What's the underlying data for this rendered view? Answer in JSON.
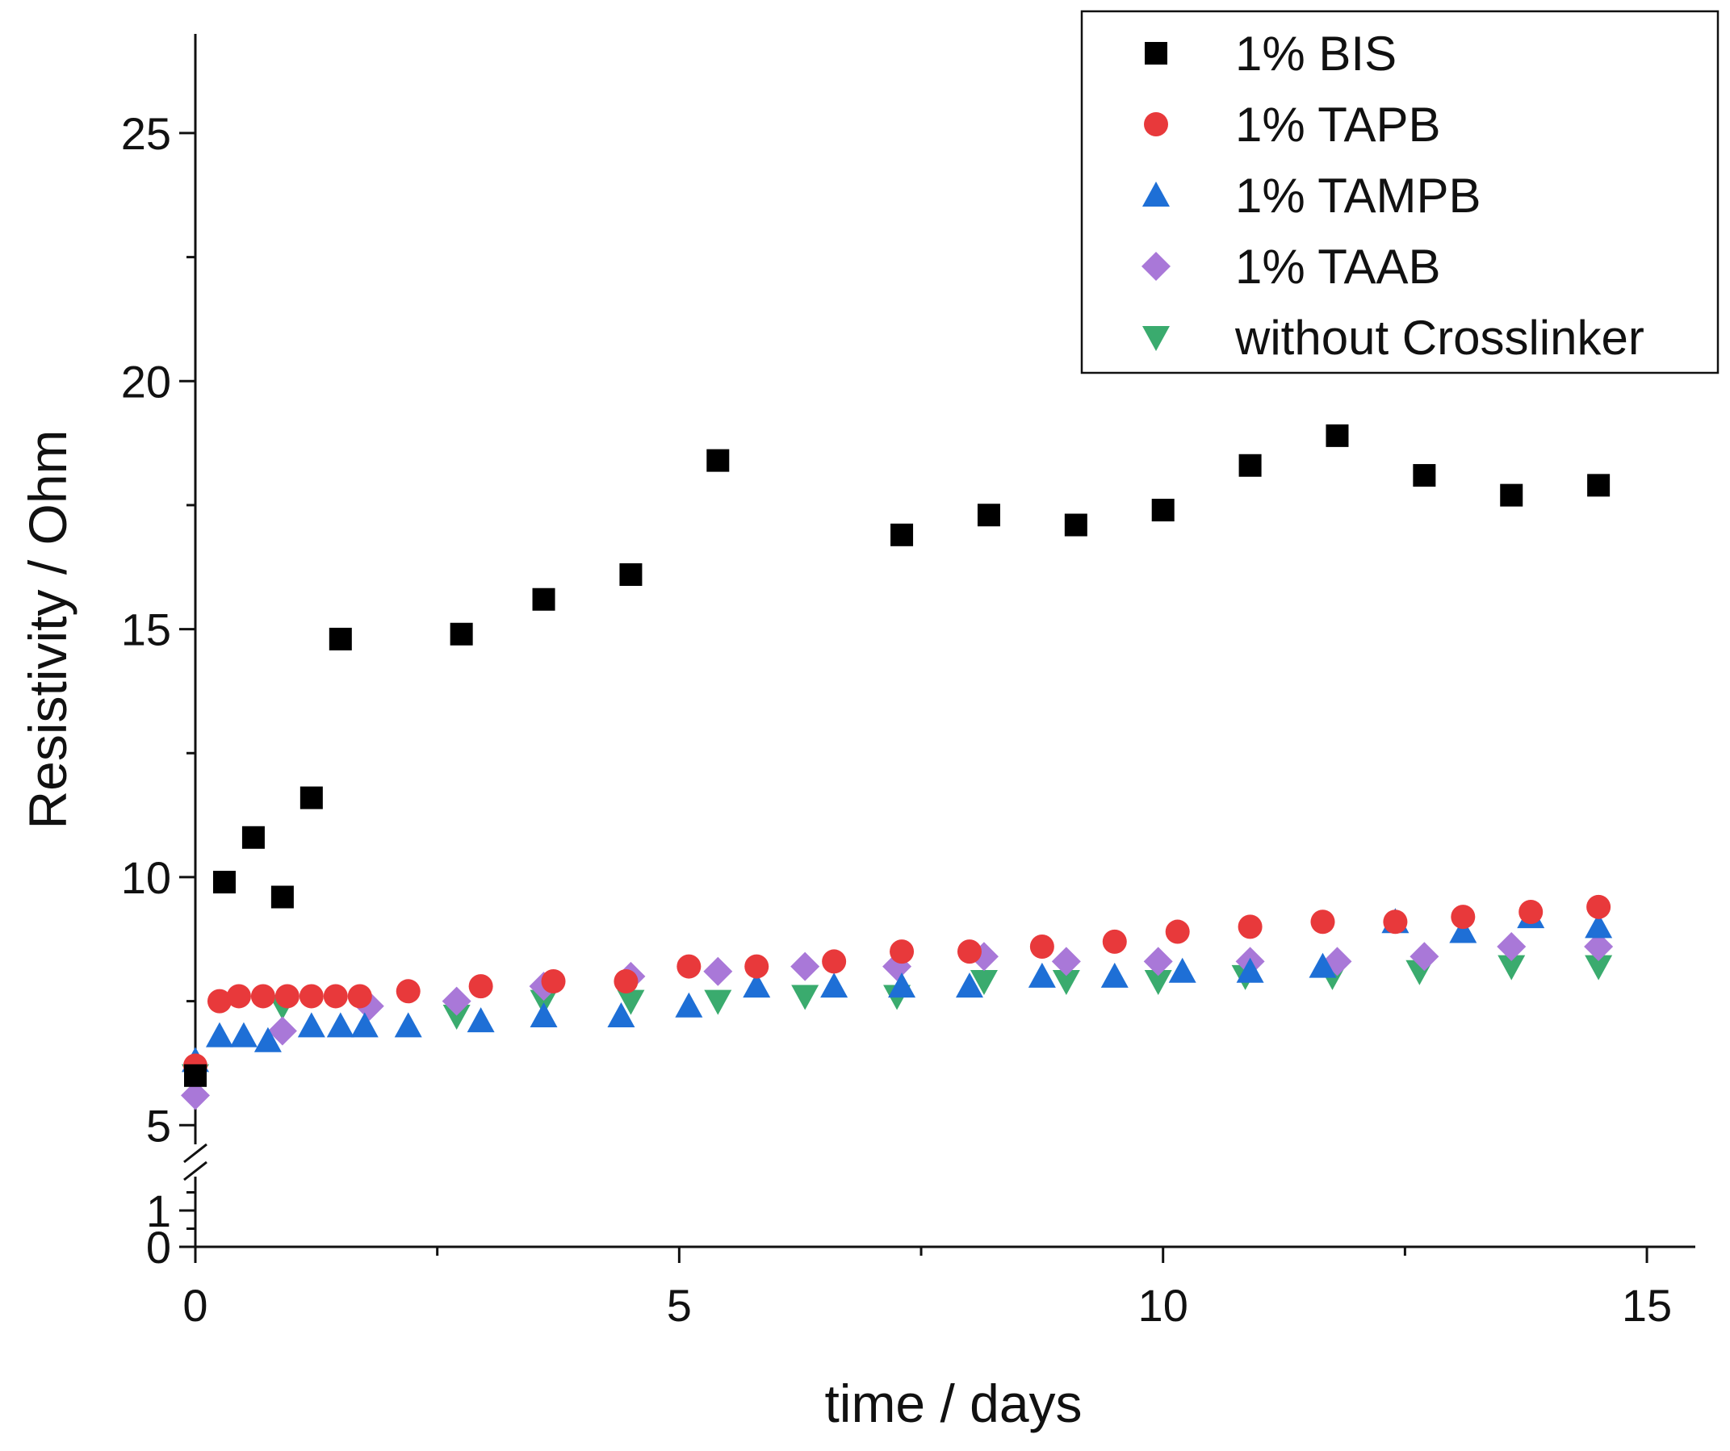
{
  "chart_data": {
    "type": "scatter",
    "xlabel": "time / days",
    "ylabel": "Resistivity / Ohm",
    "xlim": [
      0,
      15.5
    ],
    "ylim_lower": [
      0,
      2
    ],
    "ylim_upper": [
      4.5,
      27
    ],
    "y_axis_break": [
      2,
      4.5
    ],
    "x_ticks": [
      0,
      5,
      10,
      15
    ],
    "y_ticks": [
      0,
      1,
      5,
      10,
      15,
      20,
      25
    ],
    "grid": false,
    "legend_position": "top-right",
    "series": [
      {
        "name": "1% BIS",
        "marker": "square",
        "color": "#000000",
        "points": [
          [
            0.0,
            6.0
          ],
          [
            0.3,
            9.9
          ],
          [
            0.6,
            10.8
          ],
          [
            0.9,
            9.6
          ],
          [
            1.2,
            11.6
          ],
          [
            1.5,
            14.8
          ],
          [
            2.75,
            14.9
          ],
          [
            3.6,
            15.6
          ],
          [
            4.5,
            16.1
          ],
          [
            5.4,
            18.4
          ],
          [
            7.3,
            16.9
          ],
          [
            8.2,
            17.3
          ],
          [
            9.1,
            17.1
          ],
          [
            10.0,
            17.4
          ],
          [
            10.9,
            18.3
          ],
          [
            11.8,
            18.9
          ],
          [
            12.7,
            18.1
          ],
          [
            13.6,
            17.7
          ],
          [
            14.5,
            17.9
          ]
        ]
      },
      {
        "name": "1% TAPB",
        "marker": "circle",
        "color": "#e8393b",
        "points": [
          [
            0.0,
            6.2
          ],
          [
            0.25,
            7.5
          ],
          [
            0.45,
            7.6
          ],
          [
            0.7,
            7.6
          ],
          [
            0.95,
            7.6
          ],
          [
            1.2,
            7.6
          ],
          [
            1.45,
            7.6
          ],
          [
            1.7,
            7.6
          ],
          [
            2.2,
            7.7
          ],
          [
            2.95,
            7.8
          ],
          [
            3.7,
            7.9
          ],
          [
            4.45,
            7.9
          ],
          [
            5.1,
            8.2
          ],
          [
            5.8,
            8.2
          ],
          [
            6.6,
            8.3
          ],
          [
            7.3,
            8.5
          ],
          [
            8.0,
            8.5
          ],
          [
            8.75,
            8.6
          ],
          [
            9.5,
            8.7
          ],
          [
            10.15,
            8.9
          ],
          [
            10.9,
            9.0
          ],
          [
            11.65,
            9.1
          ],
          [
            12.4,
            9.1
          ],
          [
            13.1,
            9.2
          ],
          [
            13.8,
            9.3
          ],
          [
            14.5,
            9.4
          ]
        ]
      },
      {
        "name": "1% TAMPB",
        "marker": "triangle-up",
        "color": "#1e6fd6",
        "points": [
          [
            0.0,
            6.3
          ],
          [
            0.25,
            6.8
          ],
          [
            0.5,
            6.8
          ],
          [
            0.75,
            6.7
          ],
          [
            1.2,
            7.0
          ],
          [
            1.5,
            7.0
          ],
          [
            1.75,
            7.0
          ],
          [
            2.2,
            7.0
          ],
          [
            2.95,
            7.1
          ],
          [
            3.6,
            7.2
          ],
          [
            4.4,
            7.2
          ],
          [
            5.1,
            7.4
          ],
          [
            5.8,
            7.8
          ],
          [
            6.6,
            7.8
          ],
          [
            7.3,
            7.8
          ],
          [
            8.0,
            7.8
          ],
          [
            8.75,
            8.0
          ],
          [
            9.5,
            8.0
          ],
          [
            10.2,
            8.1
          ],
          [
            10.9,
            8.1
          ],
          [
            11.65,
            8.2
          ],
          [
            12.4,
            9.1
          ],
          [
            13.1,
            8.9
          ],
          [
            13.8,
            9.2
          ],
          [
            14.5,
            9.0
          ]
        ]
      },
      {
        "name": "1% TAAB",
        "marker": "diamond",
        "color": "#a978d8",
        "points": [
          [
            0.0,
            5.6
          ],
          [
            0.9,
            6.9
          ],
          [
            1.8,
            7.4
          ],
          [
            2.7,
            7.5
          ],
          [
            3.6,
            7.8
          ],
          [
            4.5,
            8.0
          ],
          [
            5.4,
            8.1
          ],
          [
            6.3,
            8.2
          ],
          [
            7.25,
            8.2
          ],
          [
            8.15,
            8.4
          ],
          [
            9.0,
            8.3
          ],
          [
            9.95,
            8.3
          ],
          [
            10.9,
            8.3
          ],
          [
            11.8,
            8.3
          ],
          [
            12.7,
            8.4
          ],
          [
            13.6,
            8.6
          ],
          [
            14.5,
            8.6
          ]
        ]
      },
      {
        "name": "without Crosslinker",
        "marker": "triangle-down",
        "color": "#3aab6e",
        "points": [
          [
            0.0,
            6.0
          ],
          [
            0.9,
            7.4
          ],
          [
            2.7,
            7.2
          ],
          [
            3.6,
            7.5
          ],
          [
            4.5,
            7.5
          ],
          [
            5.4,
            7.5
          ],
          [
            6.3,
            7.6
          ],
          [
            7.25,
            7.6
          ],
          [
            8.15,
            7.9
          ],
          [
            9.0,
            7.9
          ],
          [
            9.95,
            7.9
          ],
          [
            10.85,
            8.0
          ],
          [
            11.75,
            8.0
          ],
          [
            12.65,
            8.1
          ],
          [
            13.6,
            8.2
          ],
          [
            14.5,
            8.2
          ]
        ]
      }
    ]
  }
}
